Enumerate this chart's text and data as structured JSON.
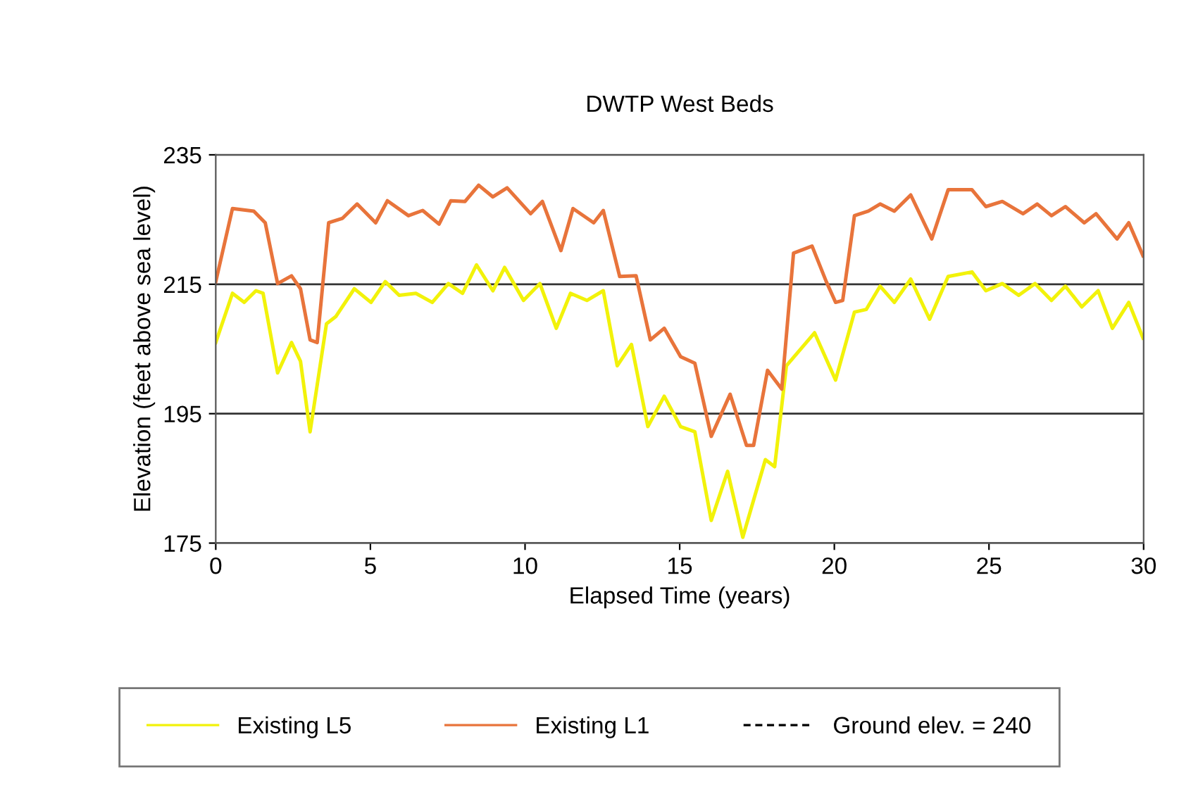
{
  "chart_data": {
    "type": "line",
    "title": "DWTP West Beds",
    "xlabel": "Elapsed Time (years)",
    "ylabel": "Elevation (feet above sea level)",
    "xlim": [
      0,
      30
    ],
    "xticks": [
      0,
      5,
      10,
      15,
      20,
      25,
      30
    ],
    "ylim": [
      175,
      235
    ],
    "yticks": [
      175,
      195,
      215,
      235
    ],
    "grid": "y",
    "legend": "bottom",
    "marker": "none",
    "line_style": "solid",
    "series": [
      {
        "name": "Existing L5",
        "color": "#f2f20a",
        "x": [
          0,
          0.54,
          0.92,
          1.3,
          1.53,
          2.0,
          2.45,
          2.74,
          3.05,
          3.58,
          3.88,
          4.48,
          5.02,
          5.48,
          5.93,
          6.47,
          7.0,
          7.52,
          7.98,
          8.43,
          8.96,
          9.34,
          9.95,
          10.48,
          11.01,
          11.47,
          12.0,
          12.53,
          12.98,
          13.44,
          13.97,
          14.5,
          15.03,
          15.49,
          16.02,
          16.55,
          17.04,
          17.77,
          18.07,
          18.45,
          19.36,
          20.04,
          20.65,
          21.03,
          21.48,
          21.94,
          22.47,
          23.08,
          23.68,
          24.45,
          24.9,
          25.43,
          25.96,
          26.49,
          27.02,
          27.47,
          28.0,
          28.53,
          28.99,
          29.52,
          29.98
        ],
        "values": [
          206.0,
          213.6,
          212.2,
          214.0,
          213.6,
          201.3,
          206.0,
          203.1,
          192.2,
          208.9,
          210.0,
          214.3,
          212.2,
          215.4,
          213.3,
          213.6,
          212.2,
          215.1,
          213.6,
          218.0,
          214.0,
          217.6,
          212.5,
          215.1,
          208.2,
          213.6,
          212.5,
          214.0,
          202.4,
          205.7,
          193.0,
          197.7,
          193.0,
          192.2,
          178.5,
          186.1,
          175.9,
          187.9,
          186.8,
          202.4,
          207.5,
          200.2,
          210.7,
          211.1,
          214.7,
          212.2,
          215.8,
          209.6,
          216.2,
          216.9,
          214.0,
          215.1,
          213.3,
          215.1,
          212.5,
          214.7,
          211.5,
          214.0,
          208.2,
          212.2,
          206.7
        ]
      },
      {
        "name": "Existing L1",
        "color": "#e8743b",
        "x": [
          0,
          0.54,
          1.23,
          1.6,
          2.0,
          2.45,
          2.74,
          3.05,
          3.28,
          3.65,
          4.1,
          4.57,
          5.17,
          5.55,
          6.23,
          6.69,
          7.22,
          7.6,
          8.06,
          8.5,
          8.96,
          9.42,
          10.18,
          10.56,
          11.16,
          11.55,
          12.22,
          12.53,
          13.06,
          13.59,
          14.05,
          14.5,
          15.03,
          15.49,
          16.02,
          16.63,
          17.16,
          17.39,
          17.84,
          18.3,
          18.68,
          19.28,
          19.74,
          20.04,
          20.27,
          20.65,
          21.1,
          21.48,
          21.94,
          22.47,
          23.15,
          23.68,
          24.45,
          24.9,
          25.43,
          26.1,
          26.56,
          27.02,
          27.47,
          28.08,
          28.46,
          29.14,
          29.52,
          29.98
        ],
        "values": [
          215.4,
          226.7,
          226.3,
          224.5,
          215.1,
          216.3,
          214.3,
          206.4,
          206.0,
          224.5,
          225.2,
          227.4,
          224.5,
          227.9,
          225.6,
          226.4,
          224.3,
          227.9,
          227.8,
          230.3,
          228.5,
          229.9,
          225.9,
          227.8,
          220.2,
          226.7,
          224.5,
          226.4,
          216.2,
          216.3,
          206.4,
          208.2,
          203.8,
          202.8,
          191.5,
          198.0,
          190.1,
          190.1,
          201.7,
          198.8,
          219.8,
          220.9,
          215.4,
          212.2,
          212.5,
          225.6,
          226.3,
          227.4,
          226.3,
          228.8,
          222.0,
          229.6,
          229.6,
          227.0,
          227.8,
          225.9,
          227.4,
          225.6,
          227.0,
          224.5,
          225.9,
          222.0,
          224.5,
          219.4
        ]
      },
      {
        "name": "Ground elev. = 240",
        "color": "#000000",
        "line_style": "dashed"
      }
    ]
  }
}
